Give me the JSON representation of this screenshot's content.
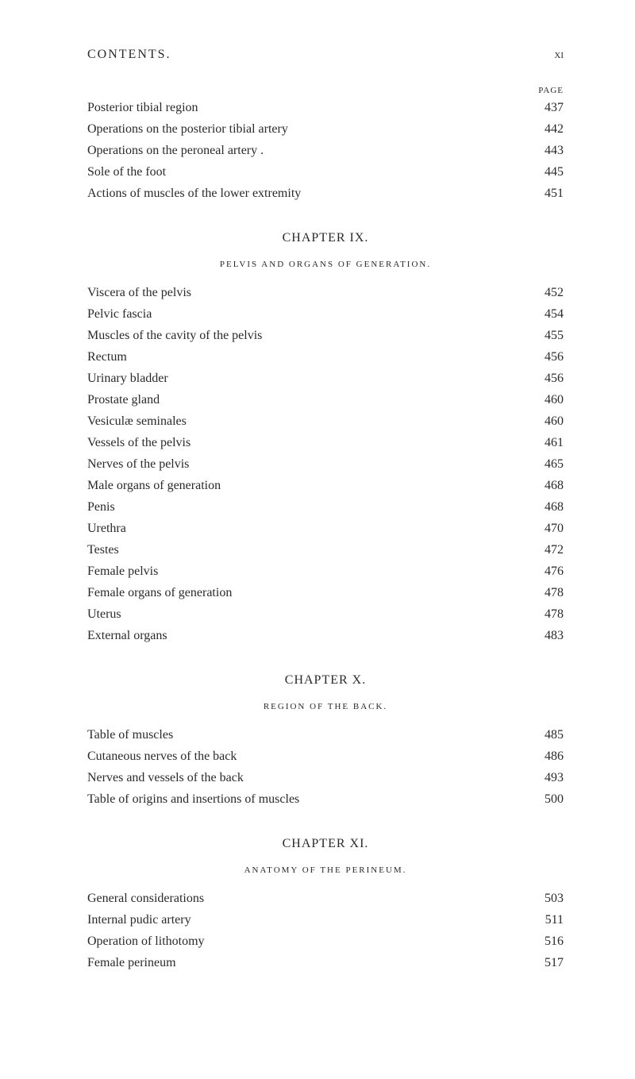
{
  "header": {
    "title": "CONTENTS.",
    "page_num": "xi"
  },
  "page_label": "PAGE",
  "section1": {
    "entries": [
      {
        "text": "Posterior tibial region",
        "page": "437"
      },
      {
        "text": "Operations on the posterior tibial artery",
        "page": "442"
      },
      {
        "text": "Operations on the peroneal artery .",
        "page": "443"
      },
      {
        "text": "Sole of the foot",
        "page": "445"
      },
      {
        "text": "Actions of muscles of the lower extremity",
        "page": "451"
      }
    ]
  },
  "chapter9": {
    "title": "CHAPTER IX.",
    "subtitle": "PELVIS AND ORGANS OF GENERATION.",
    "entries": [
      {
        "text": "Viscera of the pelvis",
        "page": "452"
      },
      {
        "text": "Pelvic fascia",
        "page": "454"
      },
      {
        "text": "Muscles of the cavity of the pelvis",
        "page": "455"
      },
      {
        "text": "Rectum",
        "page": "456"
      },
      {
        "text": "Urinary bladder",
        "page": "456"
      },
      {
        "text": "Prostate gland",
        "page": "460"
      },
      {
        "text": "Vesiculæ seminales",
        "page": "460"
      },
      {
        "text": "Vessels of the pelvis",
        "page": "461"
      },
      {
        "text": "Nerves of the pelvis",
        "page": "465"
      },
      {
        "text": "Male organs of generation",
        "page": "468"
      },
      {
        "text": "Penis",
        "page": "468"
      },
      {
        "text": "Urethra",
        "page": "470"
      },
      {
        "text": "Testes",
        "page": "472"
      },
      {
        "text": "Female pelvis",
        "page": "476"
      },
      {
        "text": "Female organs of generation",
        "page": "478"
      },
      {
        "text": "Uterus",
        "page": "478"
      },
      {
        "text": "External organs",
        "page": "483"
      }
    ]
  },
  "chapter10": {
    "title": "CHAPTER X.",
    "subtitle": "REGION OF THE BACK.",
    "entries": [
      {
        "text": "Table of muscles",
        "page": "485"
      },
      {
        "text": "Cutaneous nerves of the back",
        "page": "486"
      },
      {
        "text": "Nerves and vessels of the back",
        "page": "493"
      },
      {
        "text": "Table of origins and insertions of muscles",
        "page": "500"
      }
    ]
  },
  "chapter11": {
    "title": "CHAPTER XI.",
    "subtitle": "ANATOMY OF THE PERINEUM.",
    "entries": [
      {
        "text": "General considerations",
        "page": "503"
      },
      {
        "text": "Internal pudic artery",
        "page": "511"
      },
      {
        "text": "Operation of lithotomy",
        "page": "516"
      },
      {
        "text": "Female perineum",
        "page": "517"
      }
    ]
  }
}
